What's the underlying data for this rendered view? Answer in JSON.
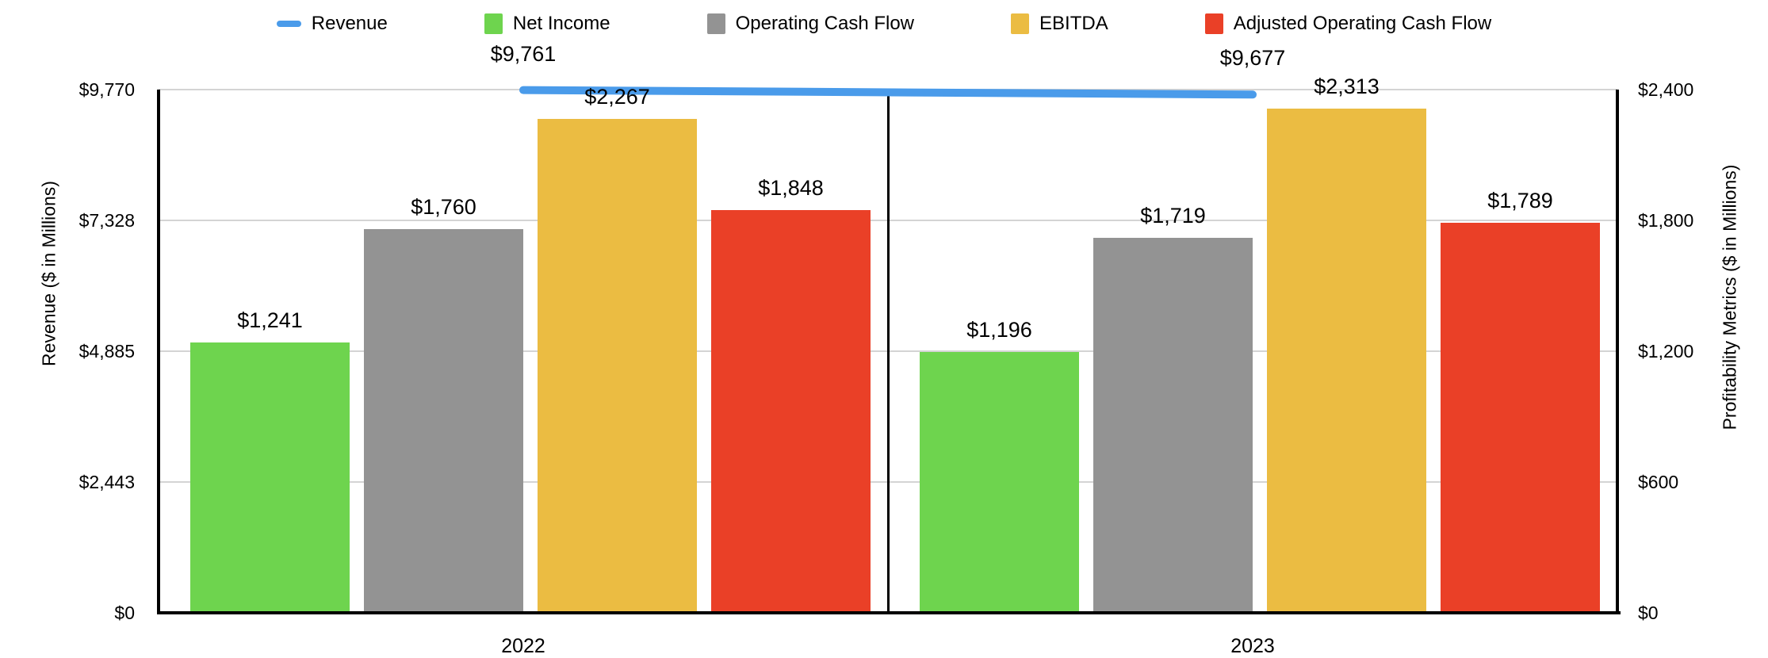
{
  "chart_data": {
    "type": "combo-bar-line",
    "categories": [
      "2022",
      "2023"
    ],
    "left_axis": {
      "title": "Revenue ($ in Millions)",
      "ticks": [
        "$0",
        "$2,443",
        "$4,885",
        "$7,328",
        "$9,770"
      ],
      "min": 0,
      "max": 9770
    },
    "right_axis": {
      "title": "Profitability Metrics ($ in Millions)",
      "ticks": [
        "$0",
        "$600",
        "$1,200",
        "$1,800",
        "$2,400"
      ],
      "min": 0,
      "max": 2400
    },
    "series": [
      {
        "name": "Revenue",
        "type": "line",
        "axis": "left",
        "color": "#4A9BEA",
        "values": [
          9761,
          9677
        ],
        "labels": [
          "$9,761",
          "$9,677"
        ]
      },
      {
        "name": "Net Income",
        "type": "bar",
        "axis": "right",
        "color": "#6ED44E",
        "values": [
          1241,
          1196
        ],
        "labels": [
          "$1,241",
          "$1,196"
        ]
      },
      {
        "name": "Operating Cash Flow",
        "type": "bar",
        "axis": "right",
        "color": "#939393",
        "values": [
          1760,
          1719
        ],
        "labels": [
          "$1,760",
          "$1,719"
        ]
      },
      {
        "name": "EBITDA",
        "type": "bar",
        "axis": "right",
        "color": "#EBBC42",
        "values": [
          2267,
          2313
        ],
        "labels": [
          "$2,267",
          "$2,313"
        ]
      },
      {
        "name": "Adjusted Operating Cash Flow",
        "type": "bar",
        "axis": "right",
        "color": "#EA4027",
        "values": [
          1848,
          1789
        ],
        "labels": [
          "$1,848",
          "$1,789"
        ]
      }
    ],
    "grid": true,
    "legend_position": "top",
    "colors": {
      "gridline": "#D4D4D4",
      "axis": "#000000",
      "background": "#FFFFFF"
    }
  }
}
